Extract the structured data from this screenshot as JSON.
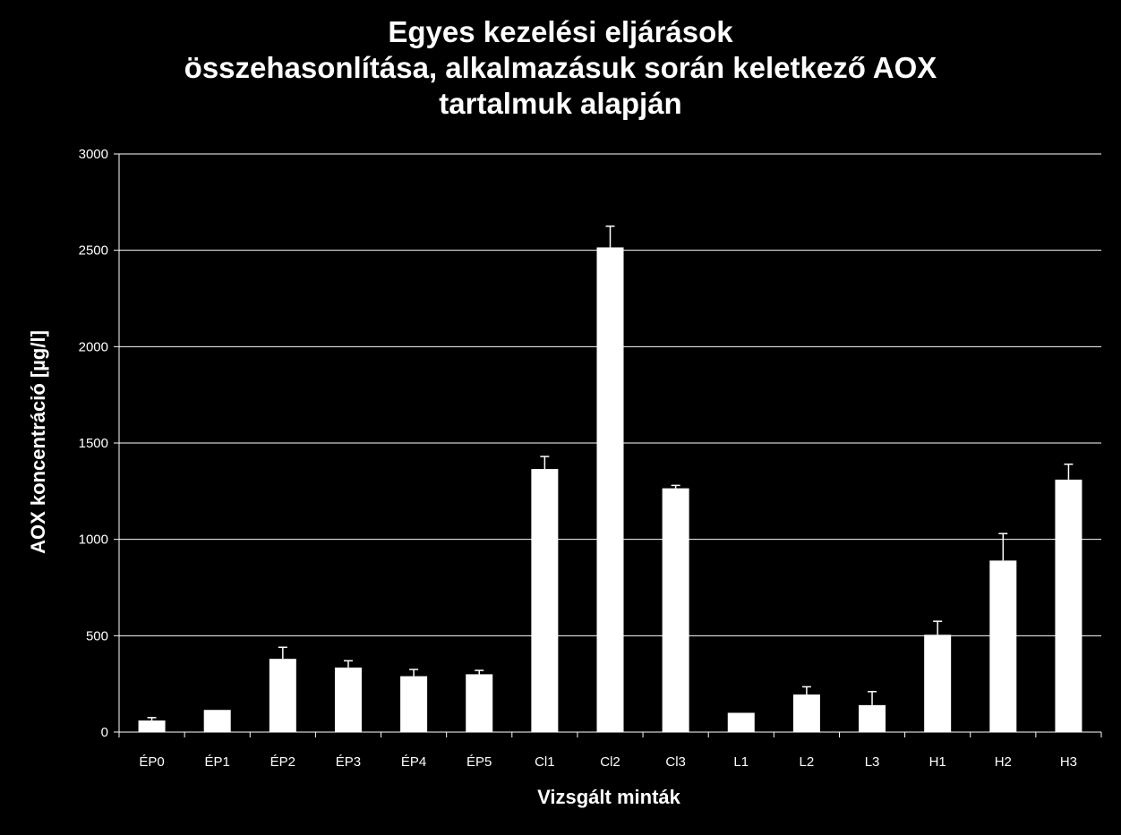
{
  "chart_data": {
    "type": "bar",
    "title": "Egyes kezelési eljárások\nösszehasonlítása, alkalmazásuk során keletkező AOX\ntartalmuk alapján",
    "xlabel": "Vizsgált minták",
    "ylabel": "AOX koncentráció [µg/l]",
    "categories": [
      "ÉP0",
      "ÉP1",
      "ÉP2",
      "ÉP3",
      "ÉP4",
      "ÉP5",
      "Cl1",
      "Cl2",
      "Cl3",
      "L1",
      "L2",
      "L3",
      "H1",
      "H2",
      "H3"
    ],
    "values": [
      60,
      115,
      380,
      335,
      290,
      300,
      1365,
      2515,
      1265,
      100,
      195,
      140,
      505,
      890,
      1310
    ],
    "errors": [
      15,
      0,
      60,
      35,
      35,
      20,
      65,
      110,
      15,
      0,
      40,
      70,
      70,
      140,
      80
    ],
    "ylim": [
      0,
      3000
    ],
    "yticks": [
      0,
      500,
      1000,
      1500,
      2000,
      2500,
      3000
    ],
    "grid": true,
    "legend": "none",
    "colors": {
      "background": "#000000",
      "bar": "#ffffff",
      "grid": "#ffffff",
      "text": "#ffffff"
    }
  }
}
